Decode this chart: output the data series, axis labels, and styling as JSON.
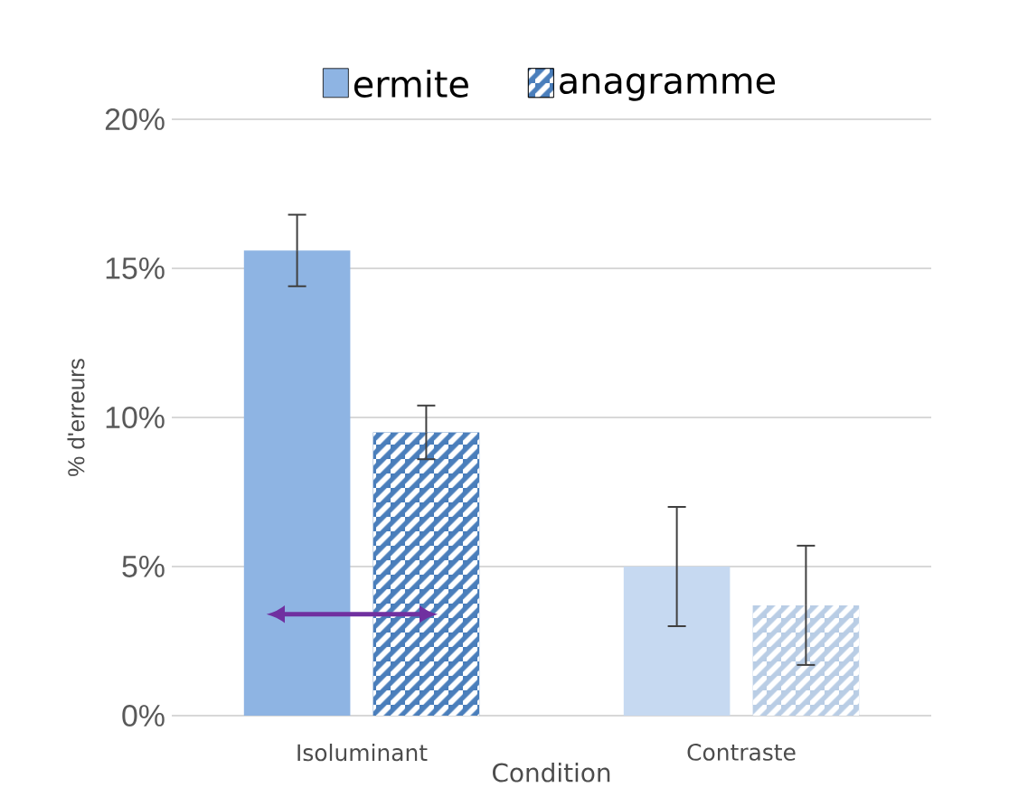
{
  "chart_data": {
    "type": "bar",
    "ylabel": "% d'erreurs",
    "xlabel": "Condition",
    "categories": [
      "Isoluminant",
      "Contraste"
    ],
    "series": [
      {
        "name": "ermite",
        "color": "#8eb4e3",
        "colors": [
          "#8eb4e3",
          "#c6d9f1"
        ],
        "values": [
          15.6,
          5.0
        ],
        "errors": [
          1.2,
          2.0
        ]
      },
      {
        "name": "anagramme",
        "color": "#4a7ebb",
        "colors": [
          "#4a7ebb",
          "#b9cde5"
        ],
        "values": [
          9.5,
          3.7
        ],
        "errors": [
          0.9,
          2.0
        ]
      }
    ],
    "ylim": [
      0,
      20
    ],
    "yticks": [
      {
        "value": 0,
        "label": "0%"
      },
      {
        "value": 5,
        "label": "5%"
      },
      {
        "value": 10,
        "label": "10%"
      },
      {
        "value": 15,
        "label": "15%"
      },
      {
        "value": 20,
        "label": "20%"
      }
    ],
    "grid": "y",
    "legend": "top"
  }
}
